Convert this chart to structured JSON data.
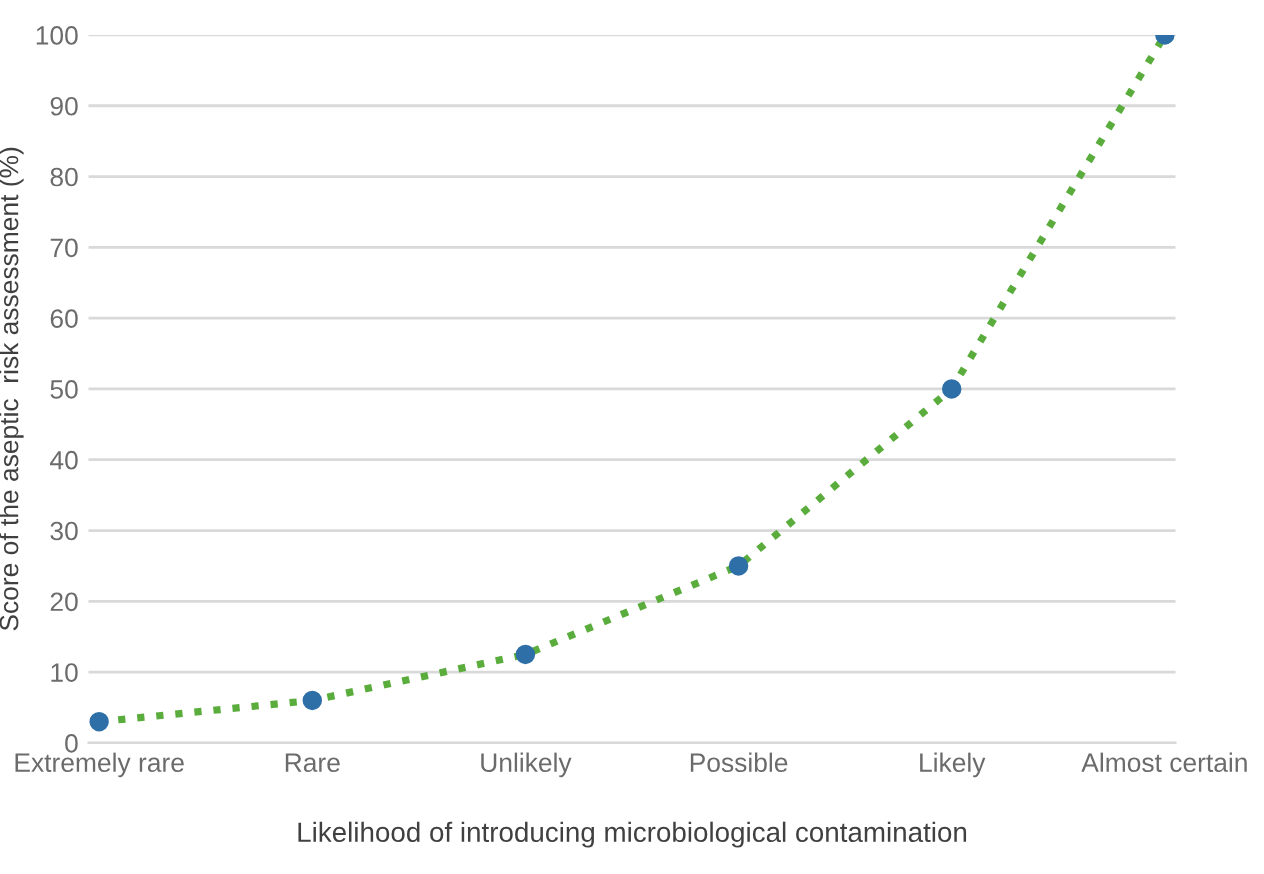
{
  "chart_data": {
    "type": "line",
    "xlabel": "Likelihood of introducing microbiological contamination",
    "ylabel": "Score of the aseptic  risk assessment (%)",
    "categories": [
      "Extremely rare",
      "Rare",
      "Unlikely",
      "Possible",
      "Likely",
      "Almost certain"
    ],
    "series": [
      {
        "color": "#5aad3c",
        "colors": [
          "#2e6fa7",
          "#2e6fa7",
          "#2e6fa7",
          "#2e6fa7",
          "#2e6fa7",
          "#2e6fa7"
        ],
        "values": [
          3,
          6,
          12.5,
          25,
          50,
          100
        ]
      }
    ],
    "ylim": [
      0,
      100
    ],
    "yticks": [
      0,
      10,
      20,
      30,
      40,
      50,
      60,
      70,
      80,
      90,
      100
    ],
    "grid": "y",
    "marker": "circle",
    "line_style": "dotted"
  }
}
